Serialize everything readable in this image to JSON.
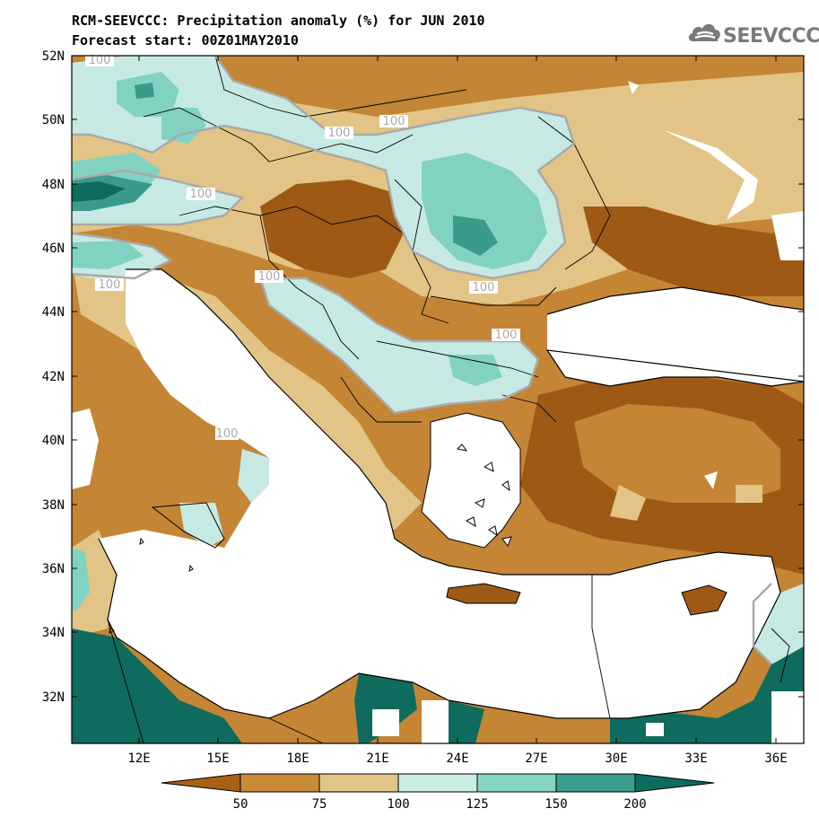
{
  "header": {
    "title_line1": "RCM-SEEVCCC: Precipitation anomaly (%) for JUN 2010",
    "title_line2": "Forecast start: 00Z01MAY2010"
  },
  "logo": {
    "text": "SEEVCCC",
    "icon": "cloud-logo-icon"
  },
  "map": {
    "lat_labels": [
      "52N",
      "50N",
      "48N",
      "46N",
      "44N",
      "42N",
      "40N",
      "38N",
      "36N",
      "34N",
      "32N"
    ],
    "lon_labels": [
      "12E",
      "15E",
      "18E",
      "21E",
      "24E",
      "27E",
      "30E",
      "33E",
      "36E"
    ],
    "contour_labels": [
      "100",
      "100",
      "100",
      "100",
      "100",
      "100",
      "100",
      "100",
      "100"
    ]
  },
  "colorbar": {
    "tick_labels": [
      "50",
      "75",
      "100",
      "125",
      "150",
      "200"
    ],
    "colors": [
      "#a86114",
      "#c98a38",
      "#e3c488",
      "#c9ece5",
      "#85d4c4",
      "#3a9d8d",
      "#0d6c5e"
    ]
  },
  "colors": {
    "dry_strong": "#9e5a14",
    "dry": "#c48535",
    "dry_light": "#e2c486",
    "wet_light": "#c6eae3",
    "wet": "#82d2c2",
    "wet_strong": "#3b9b8b",
    "wet_extreme": "#0e6b5d",
    "contour_line": "#a9a9a9"
  }
}
